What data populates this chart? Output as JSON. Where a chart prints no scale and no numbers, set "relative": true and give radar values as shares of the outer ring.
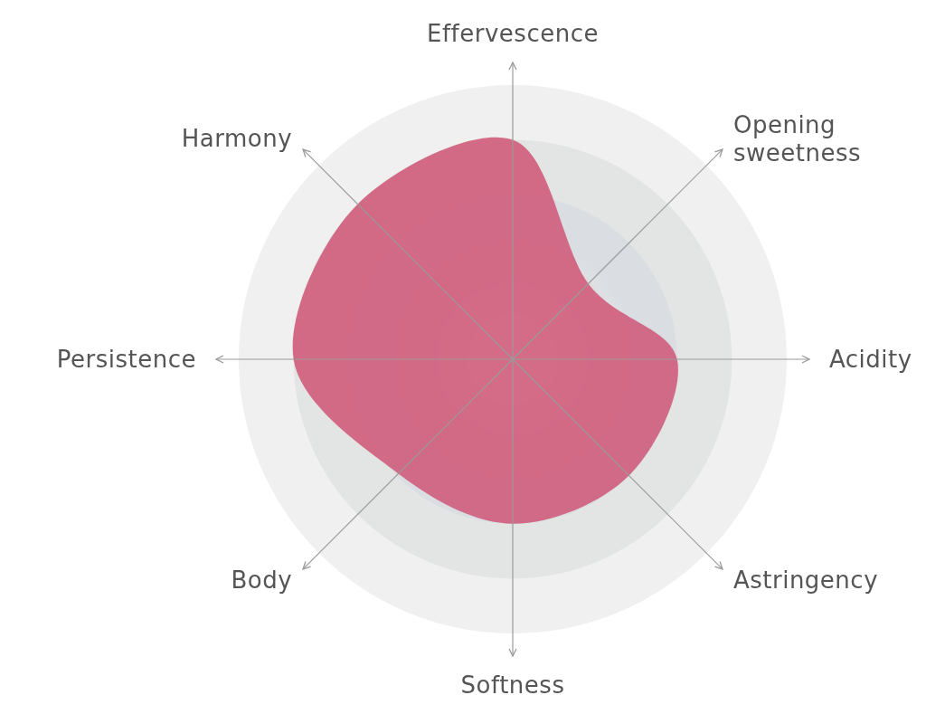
{
  "chart_data": {
    "type": "radar",
    "relative": true,
    "grid": true,
    "categories": [
      "Effervescence",
      "Opening sweetness",
      "Acidity",
      "Astringency",
      "Softness",
      "Body",
      "Persistence",
      "Harmony"
    ],
    "series": [
      {
        "color": "#d0607e",
        "values": [
          0.8,
          0.39,
          0.6,
          0.6,
          0.6,
          0.59,
          0.8,
          0.8
        ]
      }
    ]
  }
}
